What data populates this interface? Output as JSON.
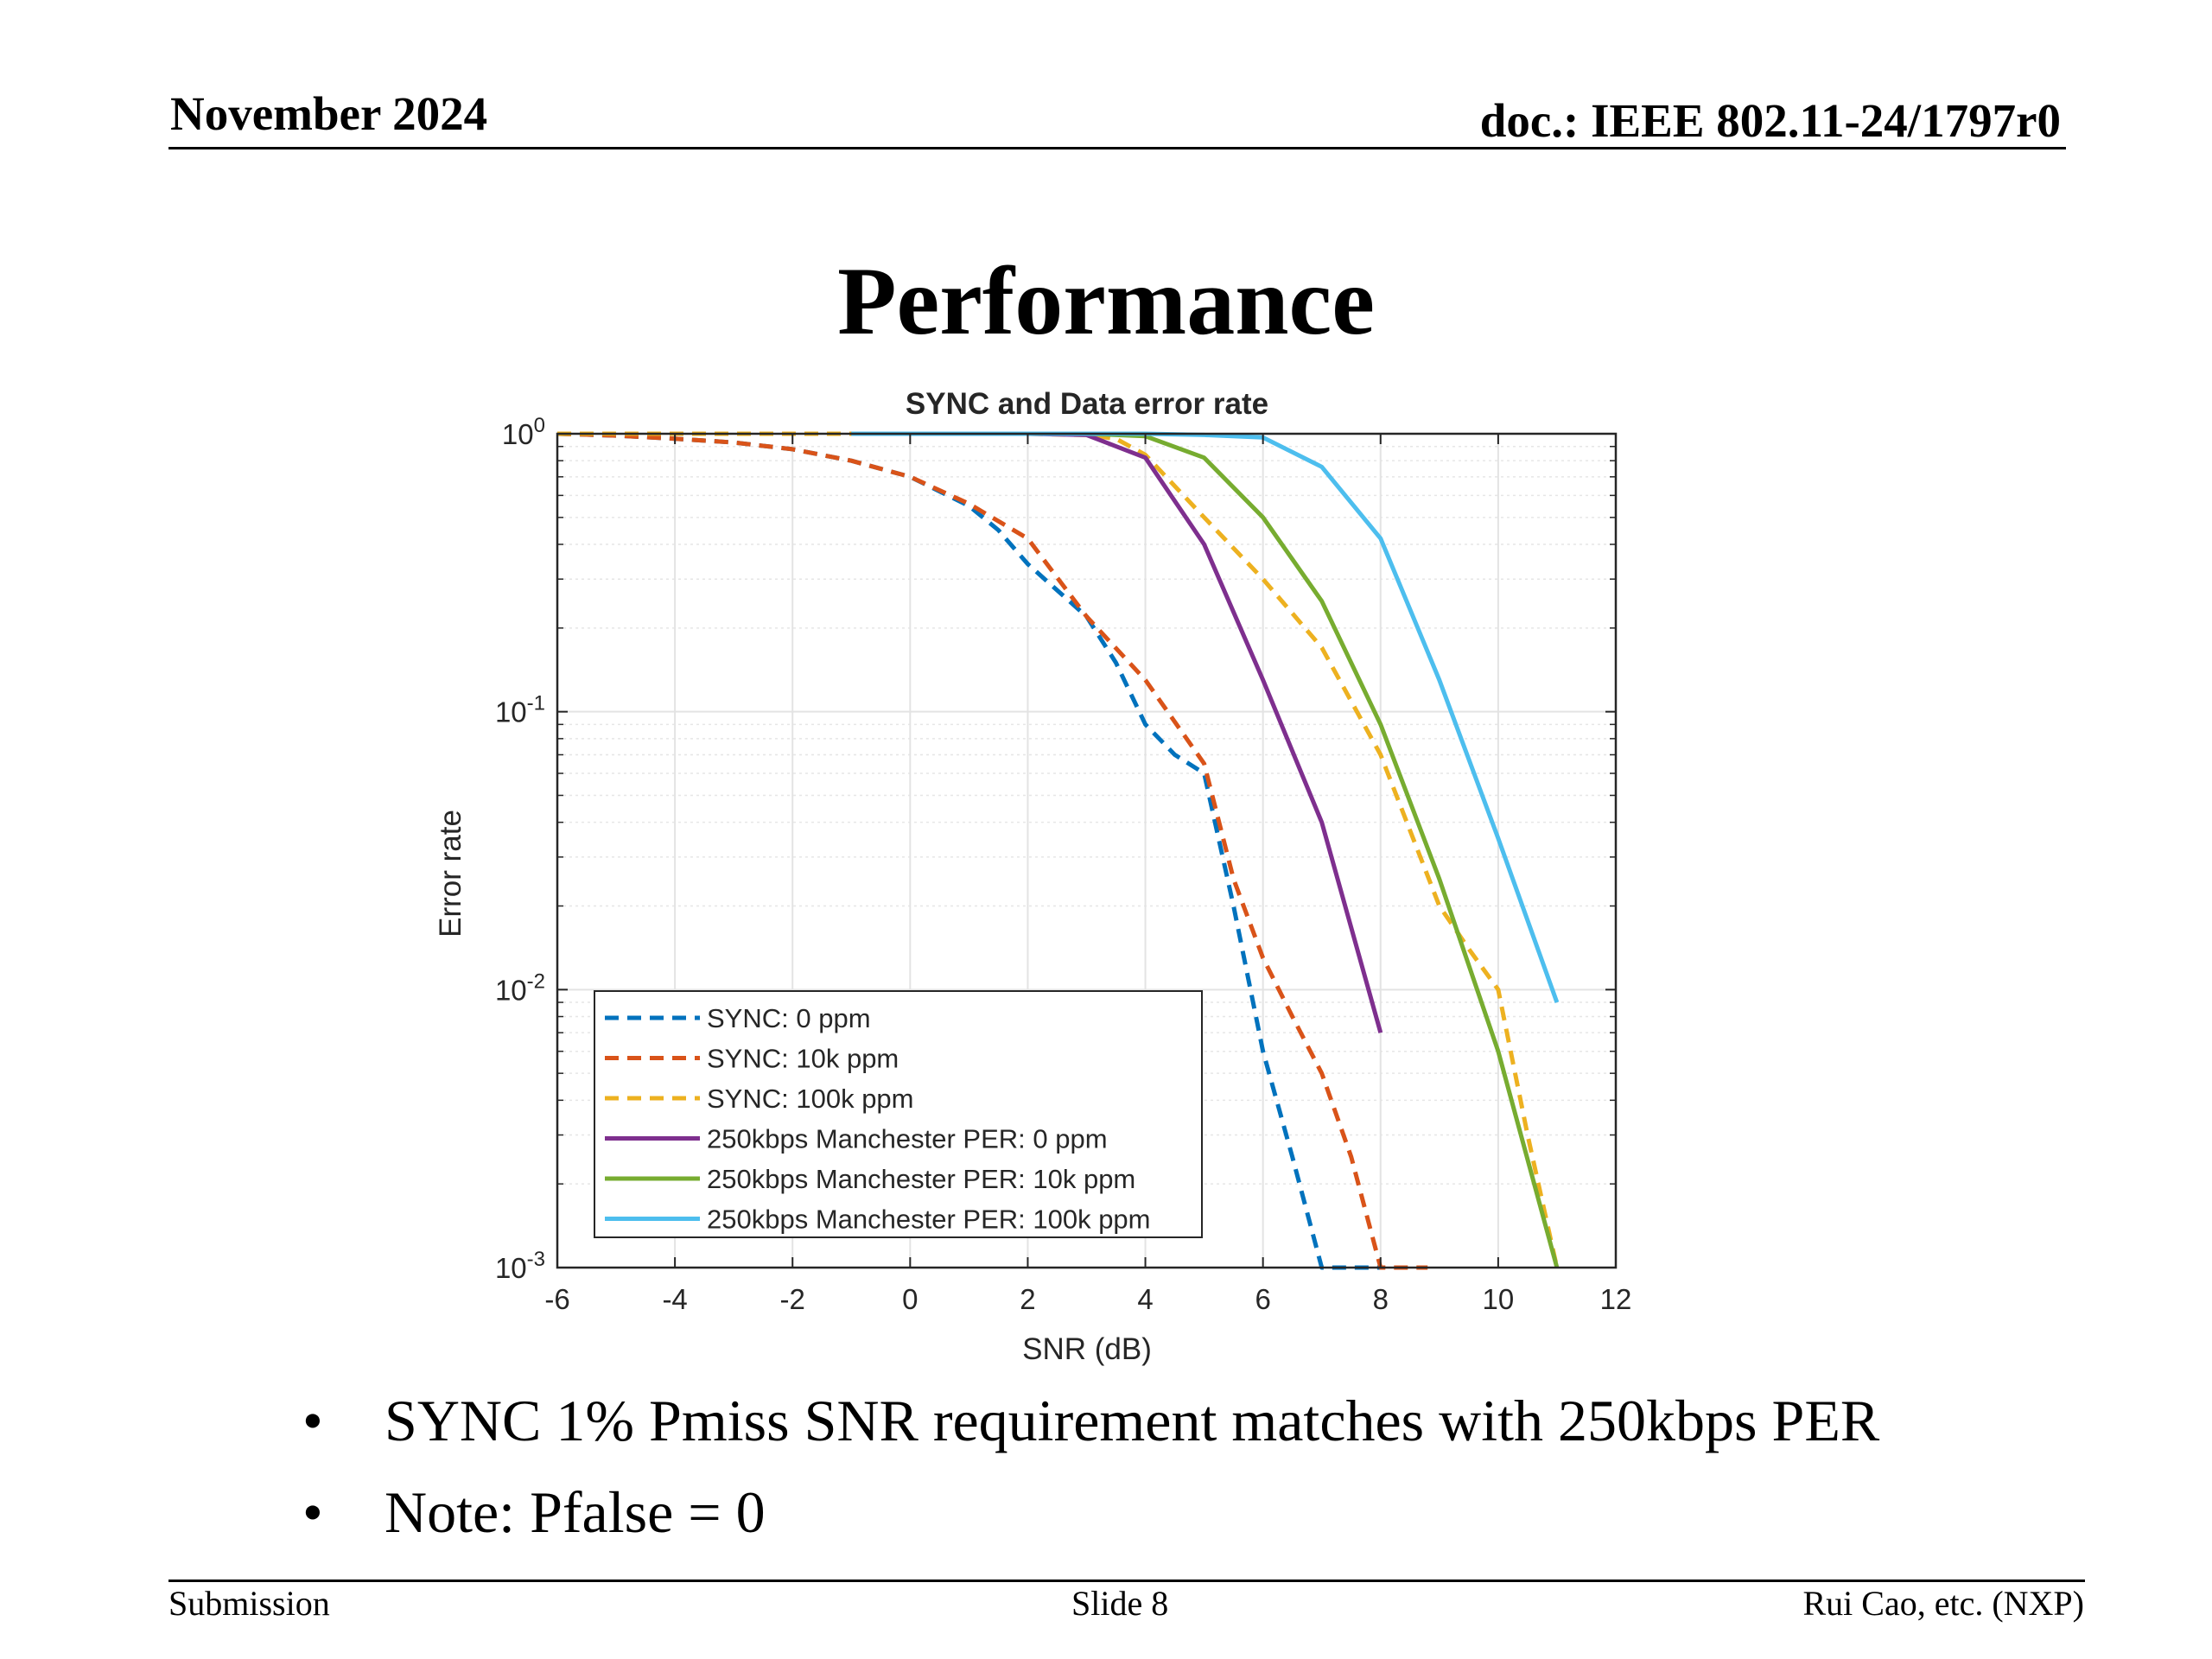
{
  "header": {
    "date": "November 2024",
    "doc": "doc.: IEEE 802.11-24/1797r0"
  },
  "slide_title": "Performance",
  "bullets": [
    "SYNC 1% Pmiss SNR requirement matches with 250kbps PER",
    "Note: Pfalse = 0"
  ],
  "footer": {
    "left": "Submission",
    "center": "Slide 8",
    "right": "Rui Cao, etc. (NXP)"
  },
  "chart_data": {
    "type": "line",
    "title": "SYNC and Data error rate",
    "xlabel": "SNR (dB)",
    "ylabel": "Error rate",
    "xlim": [
      -6,
      12
    ],
    "ylim": [
      0.001,
      1
    ],
    "yscale": "log",
    "xticks": [
      -6,
      -4,
      -2,
      0,
      2,
      4,
      6,
      8,
      10,
      12
    ],
    "yticks": [
      {
        "base": "10",
        "exp": "0",
        "value": 1
      },
      {
        "base": "10",
        "exp": "-1",
        "value": 0.1
      },
      {
        "base": "10",
        "exp": "-2",
        "value": 0.01
      },
      {
        "base": "10",
        "exp": "-3",
        "value": 0.001
      }
    ],
    "grid": true,
    "legend_position": "bottom-left",
    "series": [
      {
        "name": "SYNC: 0 ppm",
        "color": "#0072BD",
        "dash": true,
        "x": [
          -6,
          -5,
          -4,
          -3,
          -2,
          -1,
          0,
          1,
          1.5,
          2,
          3,
          3.5,
          4,
          4.5,
          5,
          5.5,
          6,
          6.5,
          7,
          7.5,
          8
        ],
        "y": [
          1,
          0.985,
          0.96,
          0.93,
          0.88,
          0.8,
          0.7,
          0.55,
          0.45,
          0.34,
          0.22,
          0.15,
          0.09,
          0.07,
          0.06,
          0.02,
          0.006,
          0.0025,
          0.001,
          0.001,
          0.001
        ]
      },
      {
        "name": "SYNC: 10k ppm",
        "color": "#D95319",
        "dash": true,
        "x": [
          -6,
          -5,
          -4,
          -3,
          -2,
          -1,
          0,
          1,
          2,
          3,
          4,
          5,
          5.5,
          6,
          6.5,
          7,
          7.5,
          8,
          8.5,
          8.8
        ],
        "y": [
          1,
          0.985,
          0.96,
          0.93,
          0.88,
          0.8,
          0.7,
          0.56,
          0.42,
          0.22,
          0.13,
          0.065,
          0.025,
          0.013,
          0.008,
          0.005,
          0.0025,
          0.001,
          0.001,
          0.001
        ]
      },
      {
        "name": "SYNC: 100k ppm",
        "color": "#EDB120",
        "dash": true,
        "x": [
          -6,
          -4,
          -2,
          0,
          2,
          3,
          3.5,
          4,
          5,
          6,
          7,
          8,
          9,
          9.5,
          10,
          10.5,
          11
        ],
        "y": [
          1,
          1,
          1,
          1,
          1,
          0.99,
          0.96,
          0.84,
          0.5,
          0.3,
          0.17,
          0.07,
          0.02,
          0.014,
          0.01,
          0.003,
          0.001
        ]
      },
      {
        "name": "250kbps Manchester PER: 0 ppm",
        "color": "#7E2F8E",
        "dash": false,
        "x": [
          -1,
          0,
          1,
          2,
          3,
          4,
          5,
          6,
          7,
          8
        ],
        "y": [
          1,
          1,
          1,
          1,
          0.99,
          0.82,
          0.4,
          0.13,
          0.04,
          0.007
        ]
      },
      {
        "name": "250kbps Manchester PER: 10k ppm",
        "color": "#77AC30",
        "dash": false,
        "x": [
          -1,
          0,
          1,
          2,
          3,
          4,
          5,
          6,
          7,
          8,
          9,
          10,
          11
        ],
        "y": [
          1,
          1,
          1,
          1,
          1,
          0.98,
          0.82,
          0.5,
          0.25,
          0.09,
          0.025,
          0.006,
          0.001
        ]
      },
      {
        "name": "250kbps Manchester PER: 100k ppm",
        "color": "#4DBEEE",
        "dash": false,
        "x": [
          -1,
          0,
          1,
          2,
          3,
          4,
          5,
          6,
          7,
          8,
          9,
          10,
          11
        ],
        "y": [
          1,
          1,
          1,
          1,
          1,
          1,
          0.99,
          0.97,
          0.76,
          0.42,
          0.13,
          0.035,
          0.009
        ]
      }
    ]
  }
}
